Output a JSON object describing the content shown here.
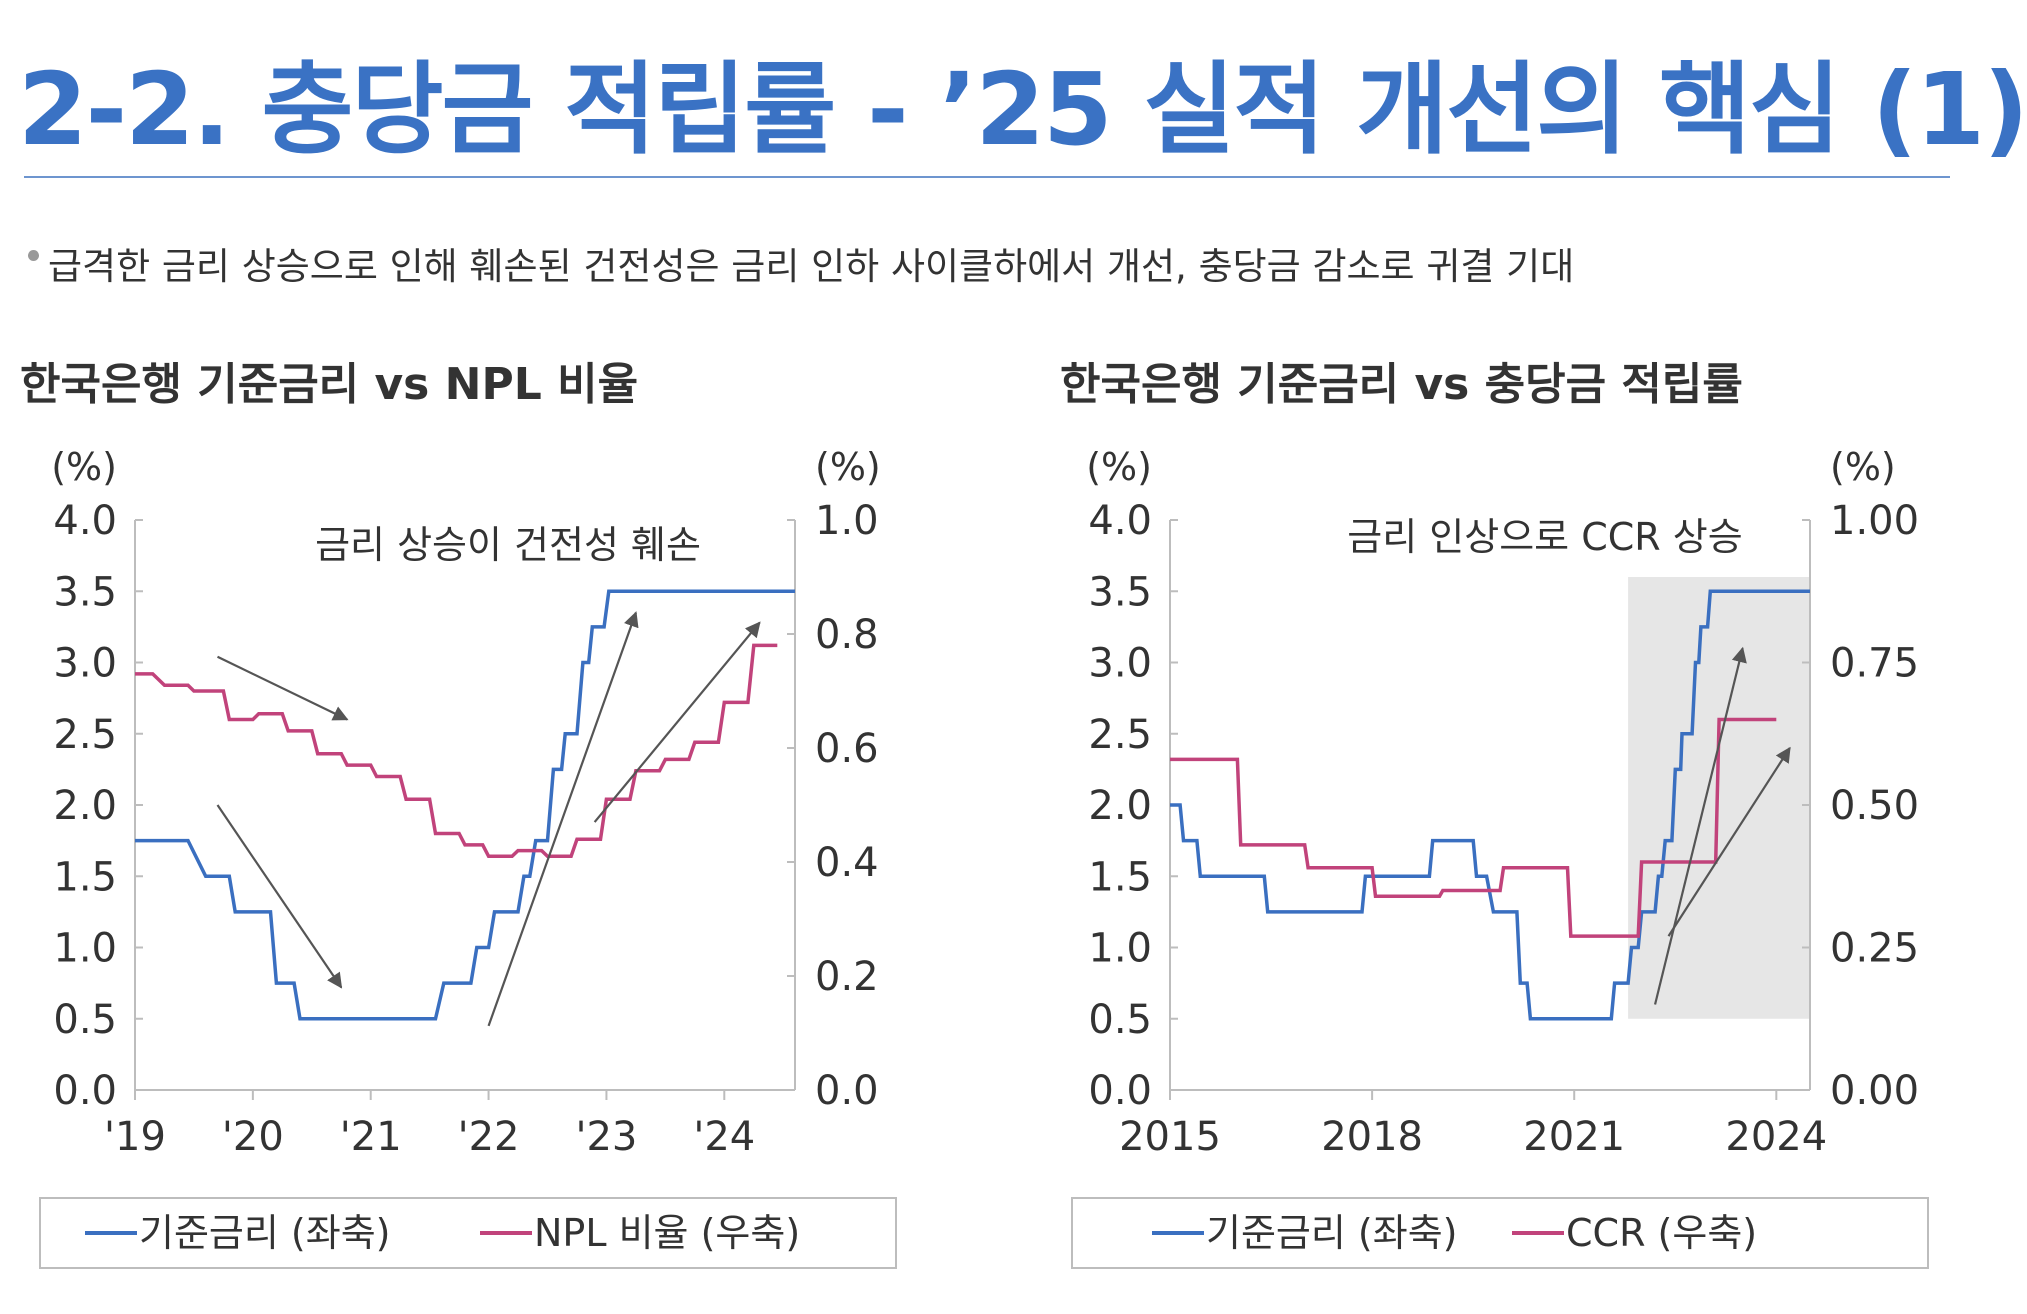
{
  "header": {
    "title": "2-2. 충당금 적립률 - ’25 실적 개선의 핵심 (1)",
    "subtitle": "급격한 금리 상승으로 인해 훼손된 건전성은 금리 인하 사이클하에서 개선, 충당금 감소로 귀결 기대"
  },
  "colors": {
    "title": "#3a72c4",
    "base_rate": "#3a6fc0",
    "npl": "#c1437b",
    "ccr": "#c1437b",
    "highlight": "#e6e6e6"
  },
  "chart_data": [
    {
      "type": "line",
      "title": "한국은행 기준금리 vs NPL 비율",
      "yunit_left": "(%)",
      "yunit_right": "(%)",
      "xlim": [
        2019,
        2024.6
      ],
      "ylim_left": [
        0,
        4
      ],
      "ylim_right": [
        0,
        1.0
      ],
      "x_ticks": [
        2019,
        2020,
        2021,
        2022,
        2023,
        2024
      ],
      "x_tick_labels": [
        "'19",
        "'20",
        "'21",
        "'22",
        "'23",
        "'24"
      ],
      "y_left_ticks": [
        0,
        0.5,
        1,
        1.5,
        2,
        2.5,
        3,
        3.5,
        4
      ],
      "y_left_tick_labels": [
        "0.0",
        "0.5",
        "1.0",
        "1.5",
        "2.0",
        "2.5",
        "3.0",
        "3.5",
        "4.0"
      ],
      "y_right_ticks": [
        0,
        0.2,
        0.4,
        0.6,
        0.8,
        1.0
      ],
      "y_right_tick_labels": [
        "0.0",
        "0.2",
        "0.4",
        "0.6",
        "0.8",
        "1.0"
      ],
      "annotation": "금리 상승이 건전성 훼손",
      "arrows": [
        {
          "from": [
            2019.7,
            0.76
          ],
          "to": [
            2020.8,
            0.65
          ],
          "axis": "right"
        },
        {
          "from": [
            2019.7,
            2.0
          ],
          "to": [
            2020.75,
            0.72
          ],
          "axis": "left"
        },
        {
          "from": [
            2022.0,
            0.45
          ],
          "to": [
            2023.25,
            3.35
          ],
          "axis": "left"
        },
        {
          "from": [
            2022.9,
            0.47
          ],
          "to": [
            2024.3,
            0.82
          ],
          "axis": "right"
        }
      ],
      "series": [
        {
          "name": "기준금리 (좌축)",
          "axis": "left",
          "step": true,
          "points": [
            [
              2019.0,
              1.75
            ],
            [
              2019.45,
              1.75
            ],
            [
              2019.6,
              1.5
            ],
            [
              2019.8,
              1.5
            ],
            [
              2019.85,
              1.25
            ],
            [
              2020.15,
              1.25
            ],
            [
              2020.2,
              0.75
            ],
            [
              2020.35,
              0.75
            ],
            [
              2020.4,
              0.5
            ],
            [
              2021.55,
              0.5
            ],
            [
              2021.62,
              0.75
            ],
            [
              2021.85,
              0.75
            ],
            [
              2021.9,
              1.0
            ],
            [
              2022.0,
              1.0
            ],
            [
              2022.05,
              1.25
            ],
            [
              2022.25,
              1.25
            ],
            [
              2022.3,
              1.5
            ],
            [
              2022.35,
              1.5
            ],
            [
              2022.4,
              1.75
            ],
            [
              2022.5,
              1.75
            ],
            [
              2022.55,
              2.25
            ],
            [
              2022.62,
              2.25
            ],
            [
              2022.65,
              2.5
            ],
            [
              2022.75,
              2.5
            ],
            [
              2022.8,
              3.0
            ],
            [
              2022.85,
              3.0
            ],
            [
              2022.88,
              3.25
            ],
            [
              2022.98,
              3.25
            ],
            [
              2023.02,
              3.5
            ],
            [
              2024.6,
              3.5
            ]
          ]
        },
        {
          "name": "NPL 비율 (우축)",
          "axis": "right",
          "step": true,
          "points": [
            [
              2019.0,
              0.73
            ],
            [
              2019.15,
              0.73
            ],
            [
              2019.25,
              0.71
            ],
            [
              2019.45,
              0.71
            ],
            [
              2019.5,
              0.7
            ],
            [
              2019.75,
              0.7
            ],
            [
              2019.8,
              0.65
            ],
            [
              2020.0,
              0.65
            ],
            [
              2020.05,
              0.66
            ],
            [
              2020.25,
              0.66
            ],
            [
              2020.3,
              0.63
            ],
            [
              2020.5,
              0.63
            ],
            [
              2020.55,
              0.59
            ],
            [
              2020.75,
              0.59
            ],
            [
              2020.8,
              0.57
            ],
            [
              2021.0,
              0.57
            ],
            [
              2021.05,
              0.55
            ],
            [
              2021.25,
              0.55
            ],
            [
              2021.3,
              0.51
            ],
            [
              2021.5,
              0.51
            ],
            [
              2021.55,
              0.45
            ],
            [
              2021.75,
              0.45
            ],
            [
              2021.8,
              0.43
            ],
            [
              2021.95,
              0.43
            ],
            [
              2022.0,
              0.41
            ],
            [
              2022.2,
              0.41
            ],
            [
              2022.25,
              0.42
            ],
            [
              2022.45,
              0.42
            ],
            [
              2022.5,
              0.41
            ],
            [
              2022.7,
              0.41
            ],
            [
              2022.75,
              0.44
            ],
            [
              2022.95,
              0.44
            ],
            [
              2023.0,
              0.51
            ],
            [
              2023.2,
              0.51
            ],
            [
              2023.25,
              0.56
            ],
            [
              2023.45,
              0.56
            ],
            [
              2023.5,
              0.58
            ],
            [
              2023.7,
              0.58
            ],
            [
              2023.75,
              0.61
            ],
            [
              2023.95,
              0.61
            ],
            [
              2024.0,
              0.68
            ],
            [
              2024.2,
              0.68
            ],
            [
              2024.25,
              0.78
            ],
            [
              2024.45,
              0.78
            ]
          ]
        }
      ],
      "legend": [
        "기준금리 (좌축)",
        "NPL 비율 (우축)"
      ]
    },
    {
      "type": "line",
      "title": "한국은행 기준금리 vs 충당금 적립률",
      "yunit_left": "(%)",
      "yunit_right": "(%)",
      "xlim": [
        2015,
        2024.5
      ],
      "ylim_left": [
        0,
        4
      ],
      "ylim_right": [
        0,
        1.0
      ],
      "x_ticks": [
        2015,
        2018,
        2021,
        2024
      ],
      "x_tick_labels": [
        "2015",
        "2018",
        "2021",
        "2024"
      ],
      "y_left_ticks": [
        0,
        0.5,
        1,
        1.5,
        2,
        2.5,
        3,
        3.5,
        4
      ],
      "y_left_tick_labels": [
        "0.0",
        "0.5",
        "1.0",
        "1.5",
        "2.0",
        "2.5",
        "3.0",
        "3.5",
        "4.0"
      ],
      "y_right_ticks": [
        0,
        0.25,
        0.5,
        0.75,
        1.0
      ],
      "y_right_tick_labels": [
        "0.00",
        "0.25",
        "0.50",
        "0.75",
        "1.00"
      ],
      "annotation": "금리 인상으로 CCR 상승",
      "highlight_range": {
        "x": [
          2021.8,
          2024.5
        ],
        "y_left": [
          0.5,
          3.6
        ]
      },
      "arrows": [
        {
          "from": [
            2022.2,
            0.6
          ],
          "to": [
            2023.5,
            3.1
          ],
          "axis": "left"
        },
        {
          "from": [
            2022.4,
            0.27
          ],
          "to": [
            2024.2,
            0.6
          ],
          "axis": "right"
        }
      ],
      "series": [
        {
          "name": "기준금리 (좌축)",
          "axis": "left",
          "step": true,
          "points": [
            [
              2015.0,
              2.0
            ],
            [
              2015.15,
              2.0
            ],
            [
              2015.2,
              1.75
            ],
            [
              2015.4,
              1.75
            ],
            [
              2015.45,
              1.5
            ],
            [
              2016.4,
              1.5
            ],
            [
              2016.45,
              1.25
            ],
            [
              2017.85,
              1.25
            ],
            [
              2017.9,
              1.5
            ],
            [
              2018.85,
              1.5
            ],
            [
              2018.9,
              1.75
            ],
            [
              2019.5,
              1.75
            ],
            [
              2019.55,
              1.5
            ],
            [
              2019.7,
              1.5
            ],
            [
              2019.8,
              1.25
            ],
            [
              2020.15,
              1.25
            ],
            [
              2020.2,
              0.75
            ],
            [
              2020.3,
              0.75
            ],
            [
              2020.35,
              0.5
            ],
            [
              2021.55,
              0.5
            ],
            [
              2021.6,
              0.75
            ],
            [
              2021.8,
              0.75
            ],
            [
              2021.85,
              1.0
            ],
            [
              2021.95,
              1.0
            ],
            [
              2022.0,
              1.25
            ],
            [
              2022.2,
              1.25
            ],
            [
              2022.25,
              1.5
            ],
            [
              2022.3,
              1.5
            ],
            [
              2022.35,
              1.75
            ],
            [
              2022.45,
              1.75
            ],
            [
              2022.5,
              2.25
            ],
            [
              2022.58,
              2.25
            ],
            [
              2022.6,
              2.5
            ],
            [
              2022.75,
              2.5
            ],
            [
              2022.8,
              3.0
            ],
            [
              2022.85,
              3.0
            ],
            [
              2022.88,
              3.25
            ],
            [
              2022.98,
              3.25
            ],
            [
              2023.02,
              3.5
            ],
            [
              2024.5,
              3.5
            ]
          ]
        },
        {
          "name": "CCR (우축)",
          "axis": "right",
          "step": true,
          "points": [
            [
              2015.0,
              0.58
            ],
            [
              2016.0,
              0.58
            ],
            [
              2016.05,
              0.43
            ],
            [
              2017.0,
              0.43
            ],
            [
              2017.05,
              0.39
            ],
            [
              2018.0,
              0.39
            ],
            [
              2018.05,
              0.34
            ],
            [
              2019.0,
              0.34
            ],
            [
              2019.05,
              0.35
            ],
            [
              2019.9,
              0.35
            ],
            [
              2019.95,
              0.39
            ],
            [
              2020.9,
              0.39
            ],
            [
              2020.95,
              0.27
            ],
            [
              2021.95,
              0.27
            ],
            [
              2022.0,
              0.4
            ],
            [
              2023.1,
              0.4
            ],
            [
              2023.15,
              0.65
            ],
            [
              2024.0,
              0.65
            ]
          ]
        }
      ],
      "legend": [
        "기준금리 (좌축)",
        "CCR (우축)"
      ]
    }
  ]
}
